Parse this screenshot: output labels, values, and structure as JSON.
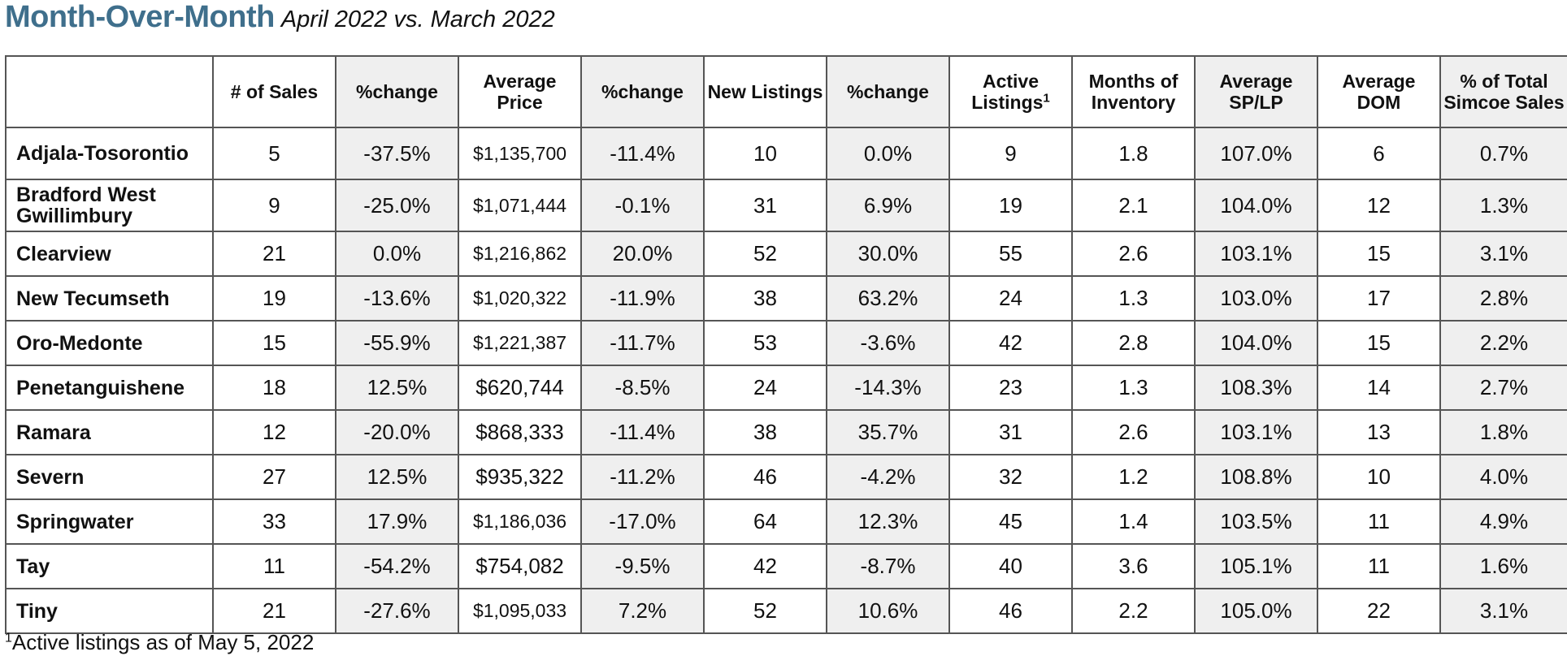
{
  "title": {
    "main": "Month-Over-Month",
    "sub": "April 2022 vs. March 2022"
  },
  "columns": [
    {
      "label": "",
      "sup": ""
    },
    {
      "label": "# of Sales",
      "sup": ""
    },
    {
      "label": "%change",
      "sup": ""
    },
    {
      "label": "Average Price",
      "sup": ""
    },
    {
      "label": "%change",
      "sup": ""
    },
    {
      "label": "New Listings",
      "sup": ""
    },
    {
      "label": "%change",
      "sup": ""
    },
    {
      "label": "Active Listings",
      "sup": "1"
    },
    {
      "label": "Months of Inventory",
      "sup": ""
    },
    {
      "label": "Average SP/LP",
      "sup": ""
    },
    {
      "label": "Average DOM",
      "sup": ""
    },
    {
      "label": "% of Total Simcoe Sales",
      "sup": ""
    }
  ],
  "rows": [
    {
      "name": "Adjala-Tosorontio",
      "cells": [
        "5",
        "-37.5%",
        "$1,135,700",
        "-11.4%",
        "10",
        "0.0%",
        "9",
        "1.8",
        "107.0%",
        "6",
        "0.7%"
      ]
    },
    {
      "name": "Bradford West Gwillimbury",
      "cells": [
        "9",
        "-25.0%",
        "$1,071,444",
        "-0.1%",
        "31",
        "6.9%",
        "19",
        "2.1",
        "104.0%",
        "12",
        "1.3%"
      ]
    },
    {
      "name": "Clearview",
      "cells": [
        "21",
        "0.0%",
        "$1,216,862",
        "20.0%",
        "52",
        "30.0%",
        "55",
        "2.6",
        "103.1%",
        "15",
        "3.1%"
      ]
    },
    {
      "name": "New Tecumseth",
      "cells": [
        "19",
        "-13.6%",
        "$1,020,322",
        "-11.9%",
        "38",
        "63.2%",
        "24",
        "1.3",
        "103.0%",
        "17",
        "2.8%"
      ]
    },
    {
      "name": "Oro-Medonte",
      "cells": [
        "15",
        "-55.9%",
        "$1,221,387",
        "-11.7%",
        "53",
        "-3.6%",
        "42",
        "2.8",
        "104.0%",
        "15",
        "2.2%"
      ]
    },
    {
      "name": "Penetanguishene",
      "cells": [
        "18",
        "12.5%",
        "$620,744",
        "-8.5%",
        "24",
        "-14.3%",
        "23",
        "1.3",
        "108.3%",
        "14",
        "2.7%"
      ]
    },
    {
      "name": "Ramara",
      "cells": [
        "12",
        "-20.0%",
        "$868,333",
        "-11.4%",
        "38",
        "35.7%",
        "31",
        "2.6",
        "103.1%",
        "13",
        "1.8%"
      ]
    },
    {
      "name": "Severn",
      "cells": [
        "27",
        "12.5%",
        "$935,322",
        "-11.2%",
        "46",
        "-4.2%",
        "32",
        "1.2",
        "108.8%",
        "10",
        "4.0%"
      ]
    },
    {
      "name": "Springwater",
      "cells": [
        "33",
        "17.9%",
        "$1,186,036",
        "-17.0%",
        "64",
        "12.3%",
        "45",
        "1.4",
        "103.5%",
        "11",
        "4.9%"
      ]
    },
    {
      "name": "Tay",
      "cells": [
        "11",
        "-54.2%",
        "$754,082",
        "-9.5%",
        "42",
        "-8.7%",
        "40",
        "3.6",
        "105.1%",
        "11",
        "1.6%"
      ]
    },
    {
      "name": "Tiny",
      "cells": [
        "21",
        "-27.6%",
        "$1,095,033",
        "7.2%",
        "52",
        "10.6%",
        "46",
        "2.2",
        "105.0%",
        "22",
        "3.1%"
      ]
    }
  ],
  "footnote": {
    "sup": "1",
    "text": "Active listings as of May 5, 2022"
  }
}
